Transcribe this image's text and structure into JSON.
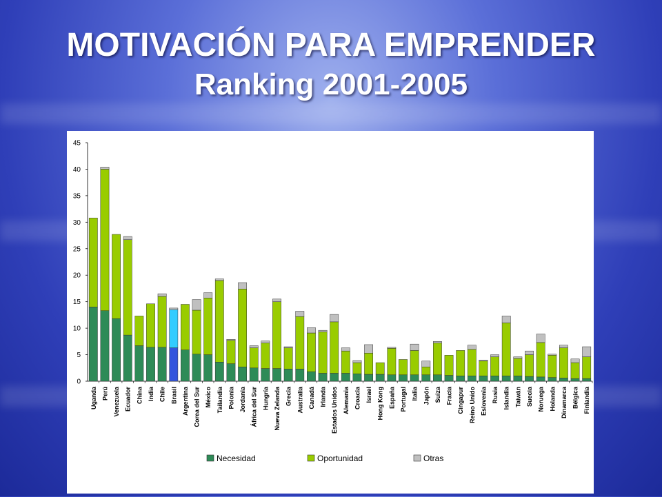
{
  "slide": {
    "title": "MOTIVACIÓN PARA EMPRENDER",
    "subtitle": "Ranking 2001-2005"
  },
  "colors": {
    "necesidad": "#2e8b57",
    "oportunidad": "#99cc00",
    "otras": "#c0c0c0",
    "brasil_necesidad": "#3355dd",
    "brasil_oportunidad": "#33ccff"
  },
  "chart_data": {
    "type": "bar",
    "stacked": true,
    "title": "",
    "xlabel": "",
    "ylabel": "",
    "ylim": [
      0,
      45
    ],
    "yticks": [
      0,
      5,
      10,
      15,
      20,
      25,
      30,
      35,
      40,
      45
    ],
    "highlight_category": "Brasil",
    "legend_position": "bottom",
    "categories": [
      "Uganda",
      "Perú",
      "Venezuela",
      "Ecuador",
      "China",
      "India",
      "Chile",
      "Brasil",
      "Argentina",
      "Corea del Sur",
      "México",
      "Tailandia",
      "Polonia",
      "Jordania",
      "África del Sur",
      "Hungría",
      "Nueva Zelanda",
      "Grecia",
      "Australia",
      "Canadá",
      "Irlanda",
      "Estados Unidos",
      "Alemania",
      "Croacia",
      "Israel",
      "Hong Kong",
      "España",
      "Portugal",
      "Italia",
      "Japón",
      "Suiza",
      "Fracia",
      "Cingapur",
      "Reino Unido",
      "Eslovenia",
      "Rusia",
      "Islandia",
      "Taiwán",
      "Suecia",
      "Noruega",
      "Holanda",
      "Dinamarca",
      "Bélgica",
      "Finlandia"
    ],
    "series": [
      {
        "name": "Necesidad",
        "values": [
          14,
          13.3,
          11.8,
          8.7,
          6.7,
          6.4,
          6.4,
          6.3,
          5.9,
          5.1,
          5,
          3.6,
          3.3,
          2.7,
          2.5,
          2.4,
          2.4,
          2.3,
          2.3,
          1.8,
          1.5,
          1.5,
          1.5,
          1.4,
          1.3,
          1.3,
          1.2,
          1.2,
          1.2,
          1.2,
          1.2,
          1.1,
          1,
          1,
          1,
          1,
          1,
          1,
          0.9,
          0.8,
          0.7,
          0.6,
          0.5,
          0.5
        ]
      },
      {
        "name": "Oportunidad",
        "values": [
          16.8,
          26.7,
          15.9,
          18,
          5.6,
          8.2,
          9.6,
          7.2,
          8.6,
          8.3,
          10.7,
          15.4,
          4.4,
          14.7,
          3.8,
          4.8,
          12.6,
          4,
          9.9,
          7.3,
          7.8,
          9.7,
          4.2,
          2.1,
          4,
          2.2,
          5,
          2.9,
          4.6,
          1.5,
          6,
          3.8,
          4.8,
          5,
          2.8,
          3.6,
          10,
          3.3,
          4.1,
          6.5,
          4.2,
          5.7,
          3,
          4.1
        ]
      },
      {
        "name": "Otras",
        "values": [
          0,
          0.4,
          0,
          0.6,
          0,
          0,
          0.5,
          0.3,
          0,
          2,
          1,
          0.3,
          0.2,
          1.2,
          0.4,
          0.4,
          0.5,
          0.2,
          1,
          1,
          0.3,
          1.4,
          0.6,
          0.4,
          1.6,
          0,
          0.2,
          0,
          1.2,
          1.1,
          0.3,
          0,
          0,
          0.8,
          0.2,
          0.4,
          1.3,
          0.3,
          0.7,
          1.6,
          0.2,
          0.5,
          0.7,
          1.9
        ]
      }
    ]
  }
}
